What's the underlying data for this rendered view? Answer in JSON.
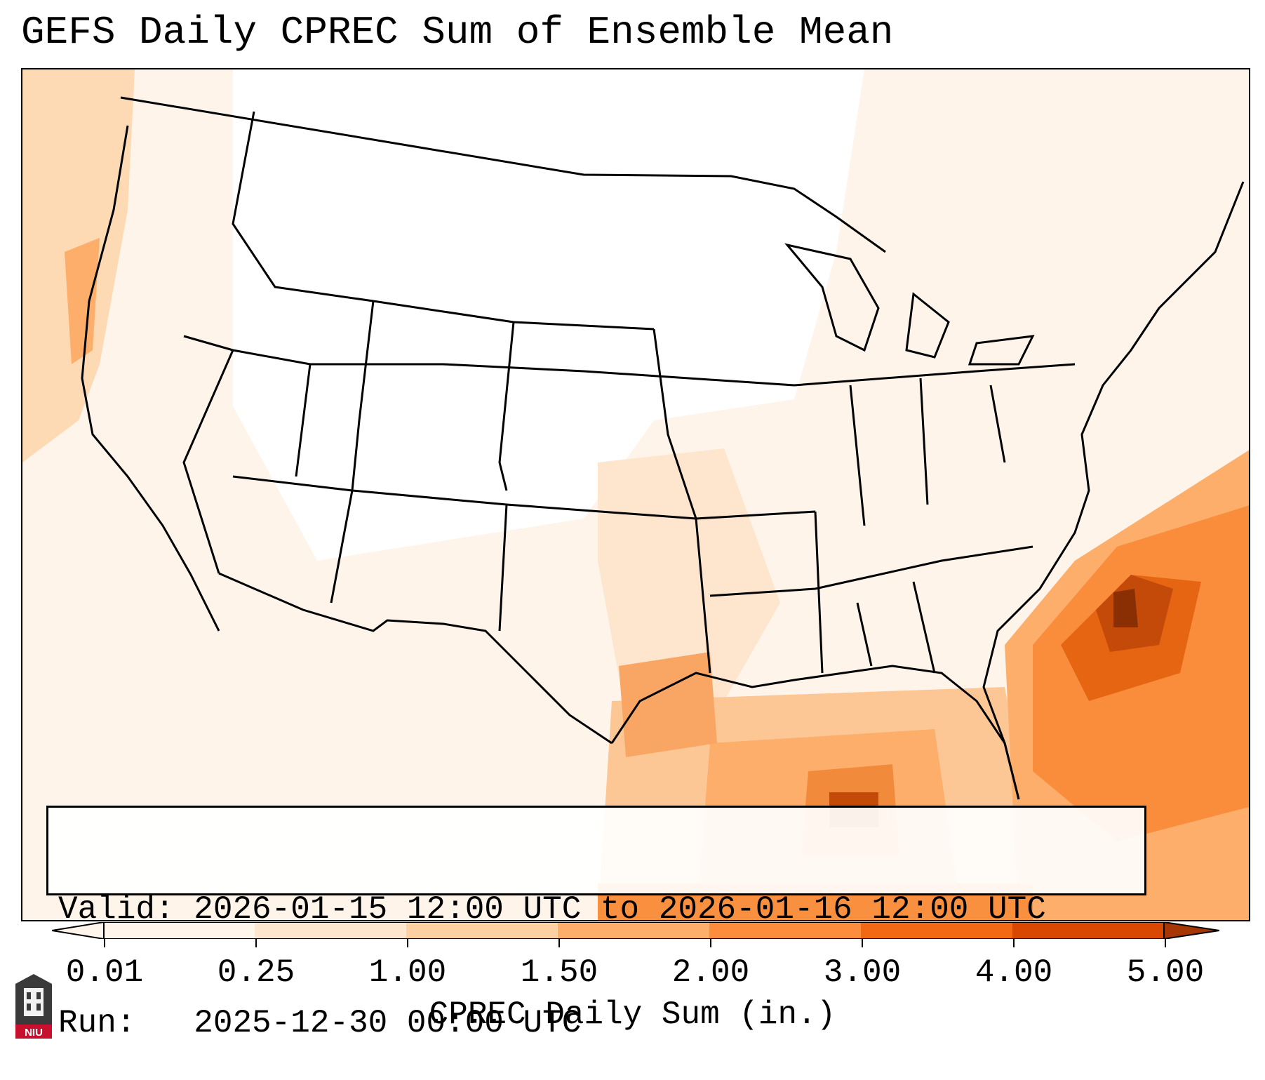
{
  "title": "GEFS Daily CPREC Sum of Ensemble Mean",
  "valid_line": "Valid: 2026-01-15 12:00 UTC to 2026-01-16 12:00 UTC",
  "run_line": "Run:   2025-12-30 00:00 UTC",
  "colorbar": {
    "label": "CPREC Daily Sum (in.)",
    "ticks": [
      "0.01",
      "0.25",
      "1.00",
      "1.50",
      "2.00",
      "3.00",
      "4.00",
      "5.00"
    ],
    "colors": [
      "#fff5eb",
      "#fee6ce",
      "#fdd0a2",
      "#fdae6b",
      "#fd8d3c",
      "#f16913",
      "#d94801",
      "#a63603",
      "#7f2704"
    ],
    "extend": "both"
  },
  "logo": {
    "text": "NIU",
    "icon": "niu-logo-icon"
  },
  "map": {
    "projection": "lambert-conformal",
    "region": "CONUS",
    "heaviest_areas": [
      "Atlantic offshore of the Carolinas",
      "Central Gulf of Mexico"
    ]
  }
}
